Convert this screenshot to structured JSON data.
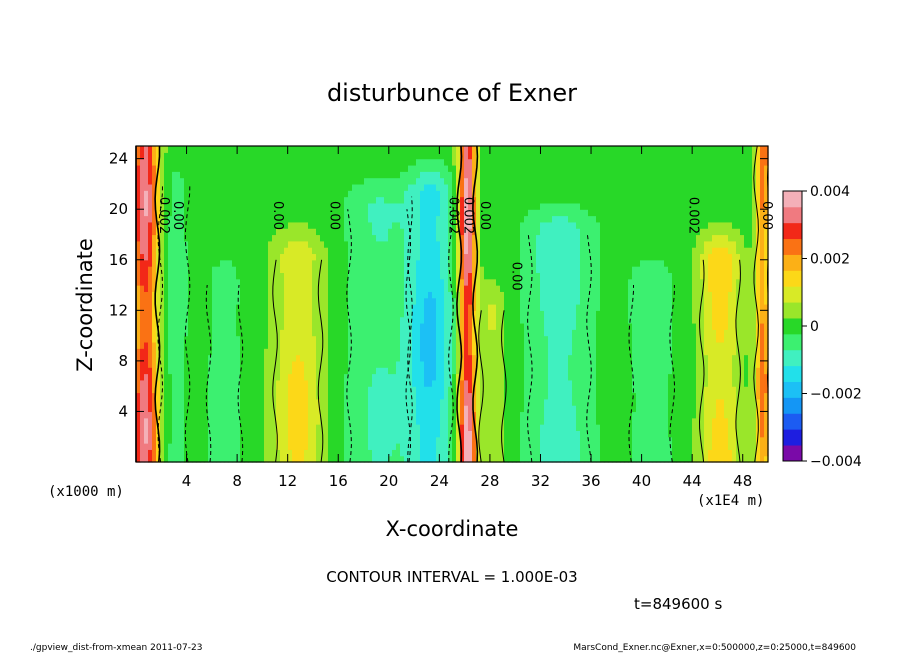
{
  "chart_data": {
    "type": "heatmap",
    "title": "disturbunce of Exner",
    "xlabel": "X-coordinate",
    "ylabel": "Z-coordinate",
    "x_unit_left": "(x1000 m)",
    "x_unit_right": "(x1E4 m)",
    "xlim": [
      0,
      50
    ],
    "ylim": [
      0,
      25
    ],
    "xticks": [
      4,
      8,
      12,
      16,
      20,
      24,
      28,
      32,
      36,
      40,
      44,
      48
    ],
    "xtick_labels": [
      "4",
      "8",
      "12",
      "16",
      "20",
      "24",
      "28",
      "32",
      "36",
      "40",
      "44",
      "48"
    ],
    "yticks": [
      4,
      8,
      12,
      16,
      20,
      24
    ],
    "ytick_labels": [
      "4",
      "8",
      "12",
      "16",
      "20",
      "24"
    ],
    "colorbar": {
      "range": [
        -0.004,
        0.004
      ],
      "levels": [
        -0.004,
        -0.0035,
        -0.003,
        -0.0025,
        -0.002,
        -0.0015,
        -0.001,
        -0.0005,
        0,
        0.0005,
        0.001,
        0.0015,
        0.002,
        0.0025,
        0.003,
        0.0035,
        0.004
      ],
      "colors": [
        "#7a0aa8",
        "#1e1ee0",
        "#1c5cf2",
        "#1496f5",
        "#1cc0f5",
        "#22e0ea",
        "#40f0c0",
        "#3cf070",
        "#28d828",
        "#9ae62a",
        "#d8ea26",
        "#fcd818",
        "#fcb016",
        "#fa7214",
        "#f22818",
        "#f07a80",
        "#f4b0b8"
      ],
      "tick_labels": [
        "0.004",
        "0.002",
        "0",
        "−0.002",
        "−0.004"
      ]
    },
    "columns": [
      {
        "x": 0.7,
        "amp": 0.0036,
        "width": 1.1,
        "top": 26
      },
      {
        "x": 3.0,
        "amp": -0.0005,
        "width": 1.2,
        "top": 22
      },
      {
        "x": 7.0,
        "amp": -0.0006,
        "width": 1.4,
        "top": 14
      },
      {
        "x": 12.8,
        "amp": 0.0014,
        "width": 2.0,
        "top": 16
      },
      {
        "x": 19.2,
        "amp": -0.0008,
        "width": 2.6,
        "top": 20
      },
      {
        "x": 23.3,
        "amp": -0.0018,
        "width": 1.8,
        "top": 21
      },
      {
        "x": 26.2,
        "amp": 0.004,
        "width": 0.7,
        "top": 26
      },
      {
        "x": 28.2,
        "amp": 0.0008,
        "width": 1.0,
        "top": 12
      },
      {
        "x": 33.5,
        "amp": -0.0011,
        "width": 2.6,
        "top": 18
      },
      {
        "x": 40.8,
        "amp": -0.0006,
        "width": 1.8,
        "top": 14
      },
      {
        "x": 46.2,
        "amp": 0.0016,
        "width": 1.6,
        "top": 16
      },
      {
        "x": 49.6,
        "amp": 0.0025,
        "width": 0.6,
        "top": 26
      }
    ],
    "contour_labels": [
      "0.002",
      "0.00",
      "0.00",
      "0.00",
      "0.002",
      "0.002",
      "0.00",
      "0.00",
      "0.002",
      "0.00"
    ],
    "contour_interval_text": "CONTOUR INTERVAL = 1.000E-03",
    "time_text": "t=849600 s"
  },
  "footer": {
    "left": "./gpview_dist-from-xmean  2011-07-23",
    "right": "MarsCond_Exner.nc@Exner,x=0:500000,z=0:25000,t=849600"
  }
}
